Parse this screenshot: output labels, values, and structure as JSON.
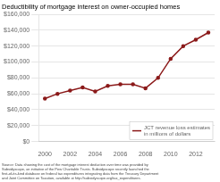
{
  "chart_data": {
    "type": "line",
    "title": "Deductibility of mortgage interest on owner-occupied homes",
    "x": [
      2000,
      2001,
      2002,
      2003,
      2004,
      2005,
      2006,
      2007,
      2008,
      2009,
      2010,
      2011,
      2012,
      2013
    ],
    "series": [
      {
        "name": "JCT revenue loss estimates\nin millions of dollars",
        "color": "#8B1A1A",
        "marker": "circle",
        "values": [
          54000,
          60000,
          64000,
          68000,
          63000,
          70000,
          72000,
          72000,
          67000,
          80000,
          104000,
          120000,
          128000,
          137000
        ]
      }
    ],
    "xlim": [
      1999.5,
      2013.5
    ],
    "xticks": [
      2000,
      2002,
      2004,
      2006,
      2008,
      2010,
      2012
    ],
    "ylim": [
      0,
      160000
    ],
    "yticks": [
      {
        "value": 0,
        "label": "$0"
      },
      {
        "value": 20000,
        "label": "$20,000"
      },
      {
        "value": 40000,
        "label": "$40,000"
      },
      {
        "value": 60000,
        "label": "$60,000"
      },
      {
        "value": 80000,
        "label": "$80,000"
      },
      {
        "value": 100000,
        "label": "$100,000"
      },
      {
        "value": 120000,
        "label": "$120,000"
      },
      {
        "value": 140000,
        "label": "$140,000"
      },
      {
        "value": 160000,
        "label": "$160,000"
      }
    ],
    "grid": "y",
    "legend": "lower right",
    "annotations": [
      "Source: Data showing the cost of the mortgage interest deduction over time was provided by\nSubsidyscope, an initiative of the Pew Charitable Trusts. Subsidyscope recently launched the\nfirst-of-its-kind database on federal tax expenditures integrating data from the Treasury Department\nand Joint Committee on Taxation, available at http://subsidyscope.org/tax_expenditures."
    ]
  }
}
